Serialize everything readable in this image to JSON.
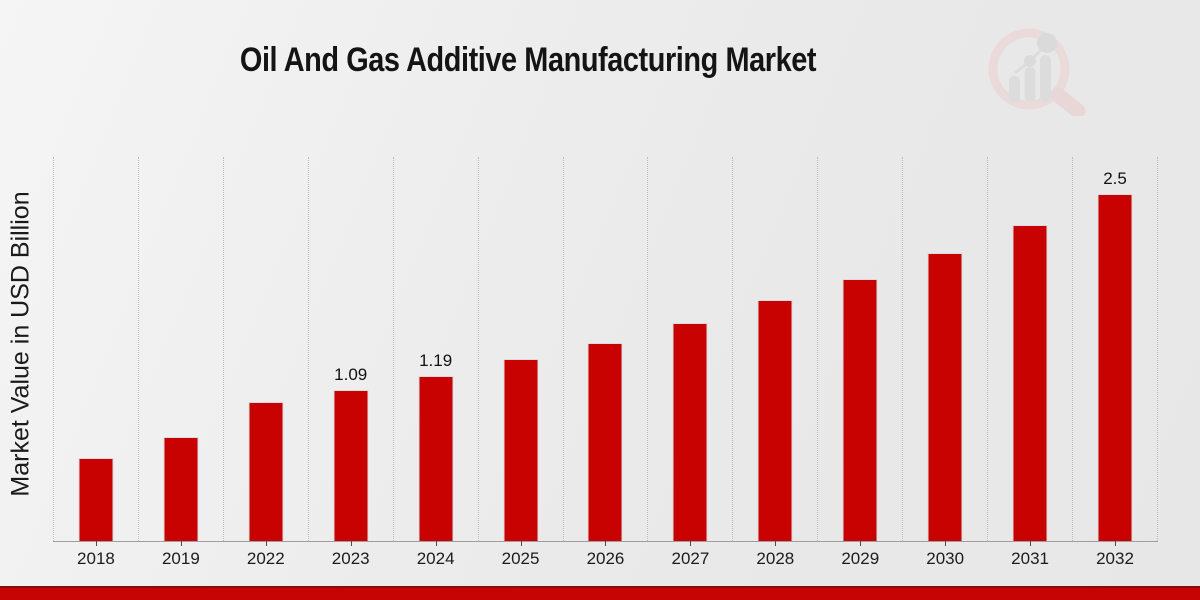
{
  "header": {
    "title": "Oil And Gas Additive Manufacturing Market"
  },
  "chart_data": {
    "type": "bar",
    "title": "Oil And Gas Additive Manufacturing Market",
    "ylabel": "Market Value in USD Billion",
    "xlabel": "",
    "unit": "USD Billion",
    "categories": [
      "2018",
      "2019",
      "2022",
      "2023",
      "2024",
      "2025",
      "2026",
      "2027",
      "2028",
      "2029",
      "2030",
      "2031",
      "2032"
    ],
    "values": [
      0.6,
      0.75,
      1.0,
      1.09,
      1.19,
      1.31,
      1.43,
      1.57,
      1.74,
      1.89,
      2.08,
      2.28,
      2.5
    ],
    "visible_value_labels": {
      "2023": "1.09",
      "2024": "1.19",
      "2032": "2.5"
    },
    "ylim": [
      0,
      2.77
    ],
    "grid": "vertical dotted gridlines between categories",
    "legend": "none",
    "bar_color": "#c80200"
  },
  "colors": {
    "bar": "#c80200",
    "background_light": "#f5f5f5",
    "background_dark": "#e7e7e7",
    "gridline": "#bcbcbc",
    "axis_line": "#9e9e9e",
    "text": "#1a1a1a",
    "footer_band": "#c60404",
    "footer_band_top_edge": "#8e0b0b",
    "watermark_pink": "#ecd0d0",
    "watermark_gray": "#d4d4d4"
  },
  "icons": {
    "watermark": "magnifying-glass-bar-chart-logo"
  }
}
